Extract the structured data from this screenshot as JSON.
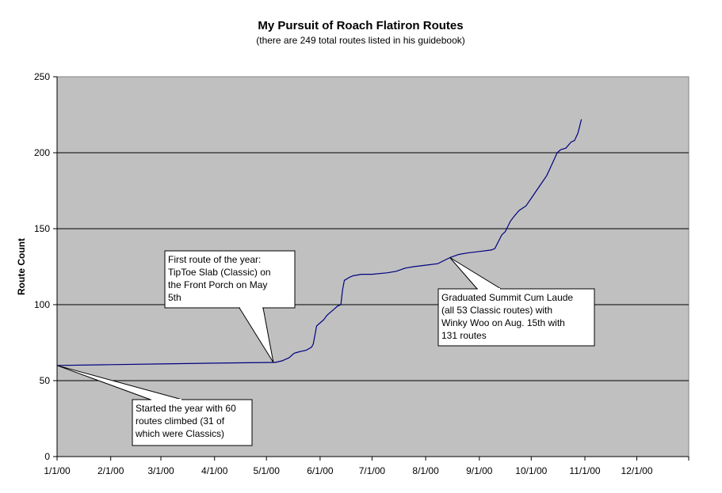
{
  "chart_data": {
    "type": "line",
    "title": "My Pursuit of Roach Flatiron Routes",
    "subtitle": "(there are 249 total routes listed in his guidebook)",
    "xlabel": "",
    "ylabel": "Route Count",
    "ylim": [
      0,
      250
    ],
    "y_ticks": [
      "0",
      "50",
      "100",
      "150",
      "200",
      "250"
    ],
    "x_ticks": [
      "1/1/00",
      "2/1/00",
      "3/1/00",
      "4/1/00",
      "5/1/00",
      "6/1/00",
      "7/1/00",
      "8/1/00",
      "9/1/00",
      "10/1/00",
      "11/1/00",
      "12/1/00"
    ],
    "xlim": [
      "2000-01-01",
      "2000-12-31"
    ],
    "grid": true,
    "plot_background": "#c0c0c0",
    "line_color": "#000080",
    "series": [
      {
        "x": [
          "2000-01-01",
          "2000-02-01",
          "2000-03-01",
          "2000-04-01",
          "2000-05-05",
          "2000-05-06",
          "2000-05-10",
          "2000-05-12",
          "2000-05-14",
          "2000-05-17",
          "2000-05-20",
          "2000-05-24",
          "2000-05-27",
          "2000-05-28",
          "2000-05-29",
          "2000-05-30",
          "2000-06-01",
          "2000-06-03",
          "2000-06-05",
          "2000-06-07",
          "2000-06-09",
          "2000-06-11",
          "2000-06-13",
          "2000-06-14",
          "2000-06-15",
          "2000-06-18",
          "2000-06-20",
          "2000-06-25",
          "2000-07-01",
          "2000-07-10",
          "2000-07-15",
          "2000-07-20",
          "2000-07-25",
          "2000-08-01",
          "2000-08-08",
          "2000-08-15",
          "2000-08-20",
          "2000-08-25",
          "2000-09-01",
          "2000-09-08",
          "2000-09-10",
          "2000-09-14",
          "2000-09-16",
          "2000-09-19",
          "2000-09-21",
          "2000-09-24",
          "2000-09-28",
          "2000-10-01",
          "2000-10-04",
          "2000-10-07",
          "2000-10-10",
          "2000-10-12",
          "2000-10-14",
          "2000-10-16",
          "2000-10-18",
          "2000-10-21",
          "2000-10-24",
          "2000-10-26",
          "2000-10-28",
          "2000-10-30"
        ],
        "values": [
          60,
          60.5,
          61,
          61.5,
          62,
          62,
          63,
          64,
          65,
          68,
          69,
          70,
          72,
          74,
          80,
          86,
          88,
          90,
          93,
          95,
          97,
          99,
          100,
          110,
          116,
          118,
          119,
          120,
          120,
          121,
          122,
          124,
          125,
          126,
          127,
          131,
          133,
          134,
          135,
          136,
          137,
          146,
          148,
          155,
          158,
          162,
          165,
          170,
          175,
          180,
          185,
          190,
          195,
          200,
          202,
          203,
          207,
          208,
          213,
          222
        ]
      }
    ],
    "annotations": [
      {
        "lines": [
          "First route of the year:",
          "TipToe Slab (Classic) on",
          "the Front Porch on May",
          "5th"
        ],
        "point": {
          "x": "2000-05-05",
          "y": 62
        }
      },
      {
        "lines": [
          "Graduated Summit Cum Laude",
          "(all 53 Classic routes) with",
          "Winky Woo on Aug. 15th with",
          "131 routes"
        ],
        "point": {
          "x": "2000-08-15",
          "y": 131
        }
      },
      {
        "lines": [
          "Started the year with 60",
          "routes climbed (31 of",
          "which were Classics)"
        ],
        "point": {
          "x": "2000-01-01",
          "y": 60
        }
      }
    ]
  }
}
